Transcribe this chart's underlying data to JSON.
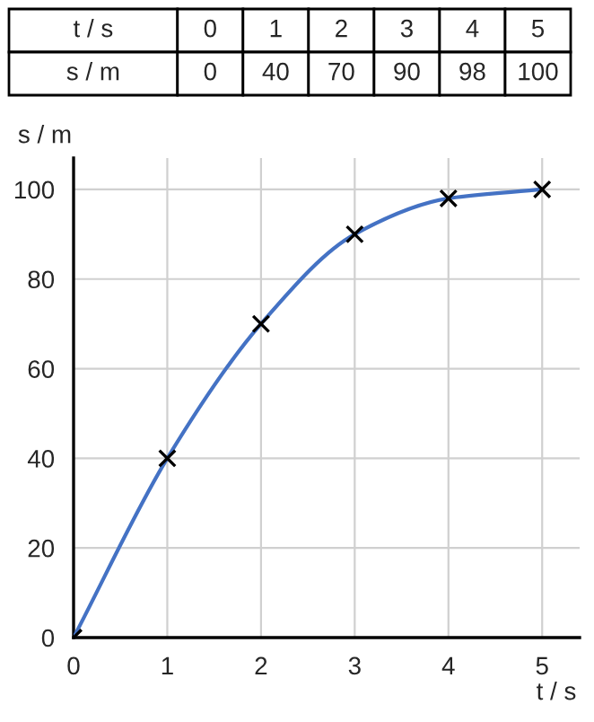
{
  "chart_data": {
    "type": "line",
    "xlabel": "t / s",
    "ylabel": "s / m",
    "x": [
      0,
      1,
      2,
      3,
      4,
      5
    ],
    "series": [
      {
        "color": "#4472c4",
        "values": [
          0,
          40,
          70,
          90,
          98,
          100
        ],
        "marker": "cross"
      }
    ],
    "xlim": [
      0,
      5.4
    ],
    "ylim": [
      0,
      107
    ],
    "xticks": [
      0,
      1,
      2,
      3,
      4,
      5
    ],
    "yticks": [
      0,
      20,
      40,
      60,
      80,
      100
    ],
    "grid": true,
    "annotations": [
      "t / s",
      "0",
      "1",
      "2",
      "3",
      "4",
      "5",
      "s / m",
      "0",
      "40",
      "70",
      "90",
      "98",
      "100"
    ]
  }
}
